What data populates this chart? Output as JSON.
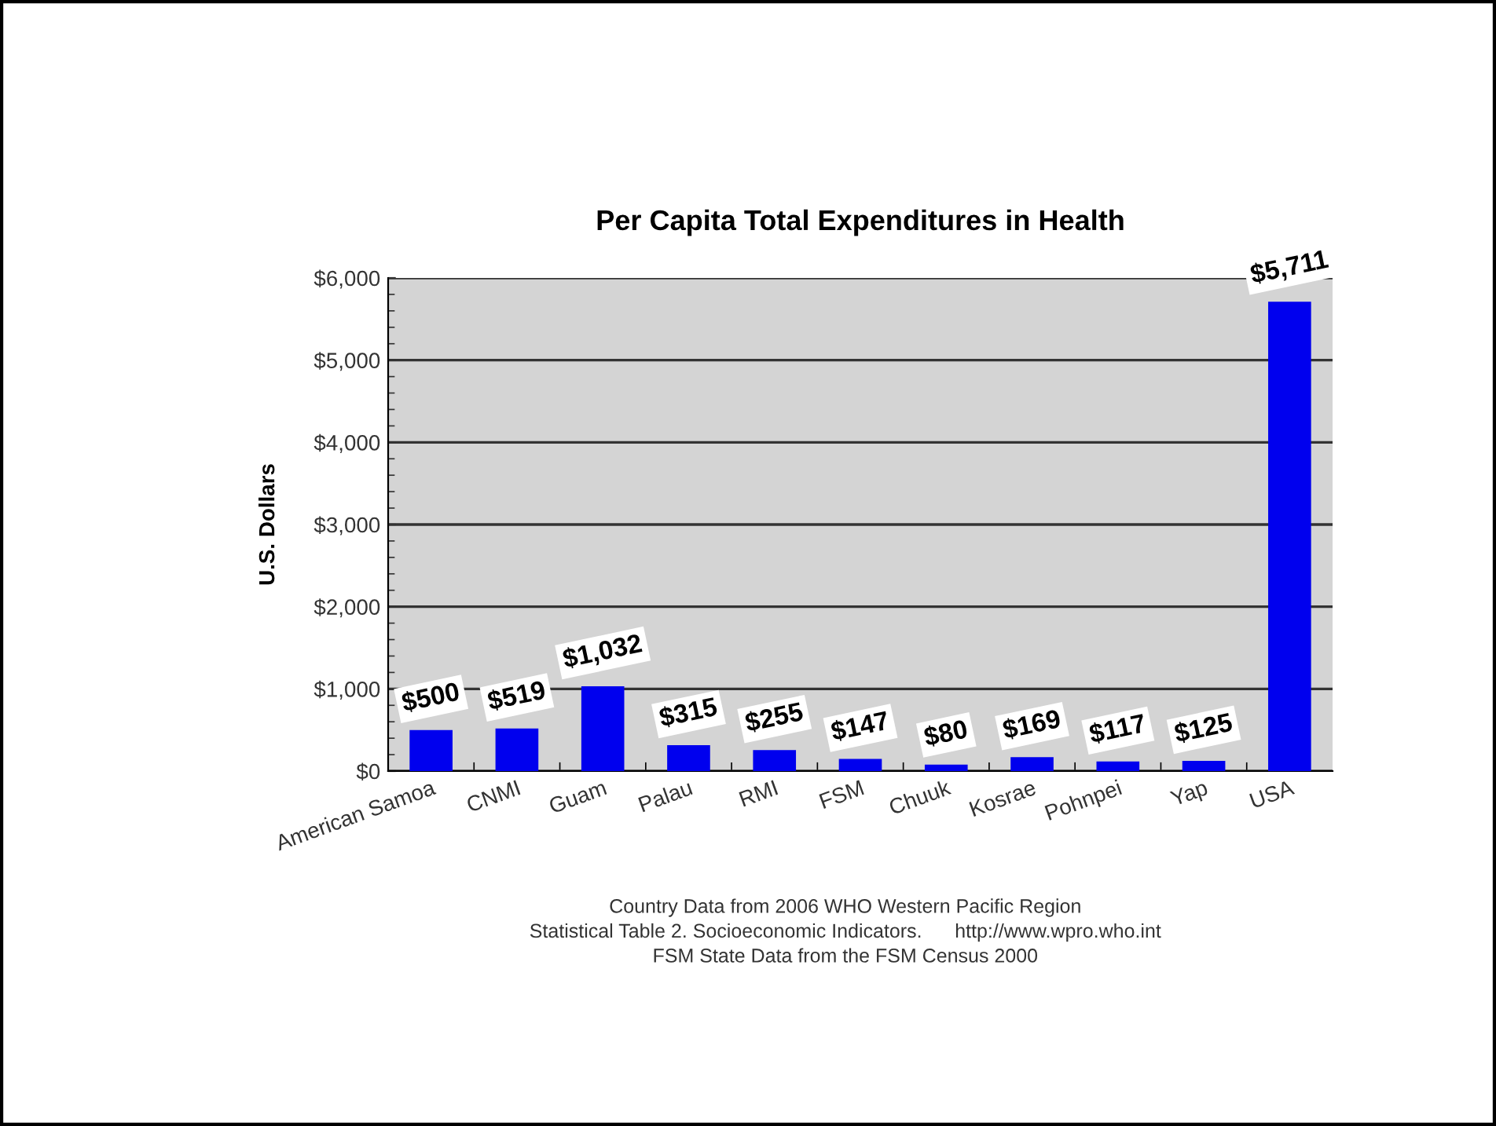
{
  "chart_data": {
    "type": "bar",
    "title": "Per Capita Total Expenditures in Health",
    "ylabel": "U.S. Dollars",
    "categories": [
      "American Samoa",
      "CNMI",
      "Guam",
      "Palau",
      "RMI",
      "FSM",
      "Chuuk",
      "Kosrae",
      "Pohnpei",
      "Yap",
      "USA"
    ],
    "values": [
      500,
      519,
      1032,
      315,
      255,
      147,
      80,
      169,
      117,
      125,
      5711
    ],
    "value_labels": [
      "$500",
      "$519",
      "$1,032",
      "$315",
      "$255",
      "$147",
      "$80",
      "$169",
      "$117",
      "$125",
      "$5,711"
    ],
    "color": "#0000ee",
    "ylim": [
      0,
      6000
    ],
    "yticks": [
      {
        "value": 0,
        "label": "$0"
      },
      {
        "value": 1000,
        "label": "$1,000"
      },
      {
        "value": 2000,
        "label": "$2,000"
      },
      {
        "value": 3000,
        "label": "$3,000"
      },
      {
        "value": 4000,
        "label": "$4,000"
      },
      {
        "value": 5000,
        "label": "$5,000"
      },
      {
        "value": 6000,
        "label": "$6,000"
      }
    ],
    "grid": "y",
    "legend": false,
    "annotations": [
      "Country Data from 2006 WHO Western Pacific Region",
      "Statistical Table 2. Socioeconomic Indicators.      http://www.wpro.who.int",
      "FSM State Data from the FSM Census 2000"
    ]
  }
}
